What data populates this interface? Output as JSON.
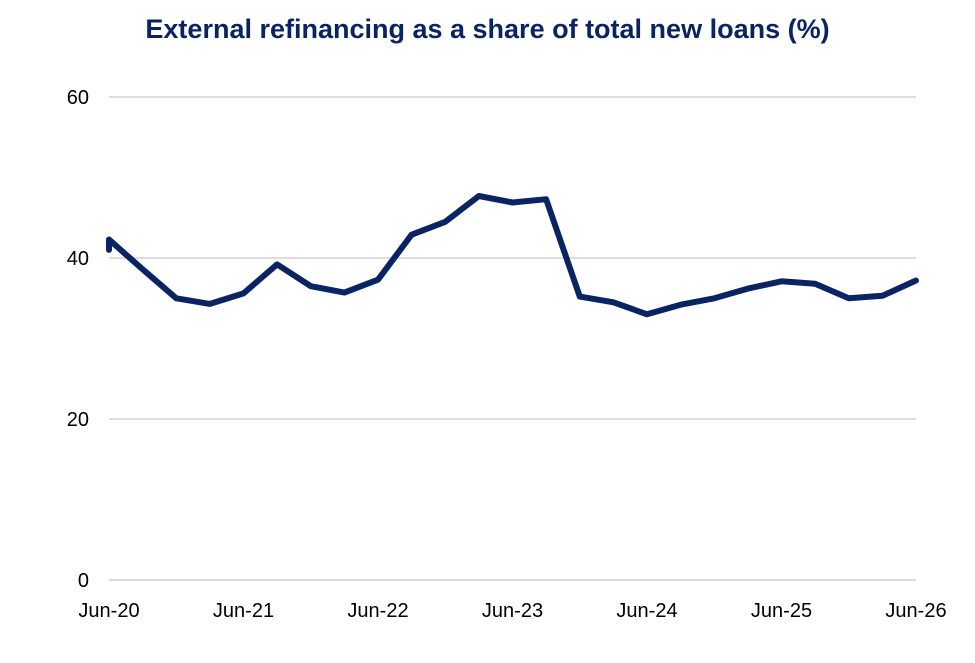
{
  "colors": {
    "line": "#0a2463",
    "grid": "#d0d0d0",
    "title": "#0a2463"
  },
  "chart_data": {
    "type": "line",
    "title": "External refinancing as a share of total new loans (%)",
    "xlabel": "",
    "ylabel": "",
    "ylim": [
      0,
      60
    ],
    "yticks": [
      0,
      20,
      40,
      60
    ],
    "xlim": [
      "Jun-20",
      "Jun-26"
    ],
    "xticks": [
      "Jun-20",
      "Jun-21",
      "Jun-22",
      "Jun-23",
      "Jun-24",
      "Jun-25",
      "Jun-26"
    ],
    "grid": true,
    "legend": "none",
    "series": [
      {
        "x": [
          "Apr-20",
          "Jun-20",
          "Sep-20",
          "Dec-20",
          "Mar-21",
          "Jun-21",
          "Sep-21",
          "Dec-21",
          "Mar-22",
          "Jun-22",
          "Sep-22",
          "Dec-22",
          "Mar-23",
          "Jun-23",
          "Sep-23",
          "Dec-23",
          "Mar-24",
          "Jun-24",
          "Sep-24",
          "Dec-24",
          "Mar-25",
          "Jun-25",
          "Sep-25",
          "Dec-25",
          "Mar-26",
          "Jun-26"
        ],
        "values": [
          41.0,
          42.3,
          38.6,
          35.0,
          34.3,
          35.6,
          39.2,
          36.5,
          35.7,
          37.3,
          42.9,
          44.5,
          47.7,
          46.9,
          47.3,
          35.2,
          34.5,
          33.0,
          34.2,
          35.0,
          36.2,
          37.1,
          36.8,
          35.0,
          35.3,
          37.2
        ]
      }
    ]
  }
}
